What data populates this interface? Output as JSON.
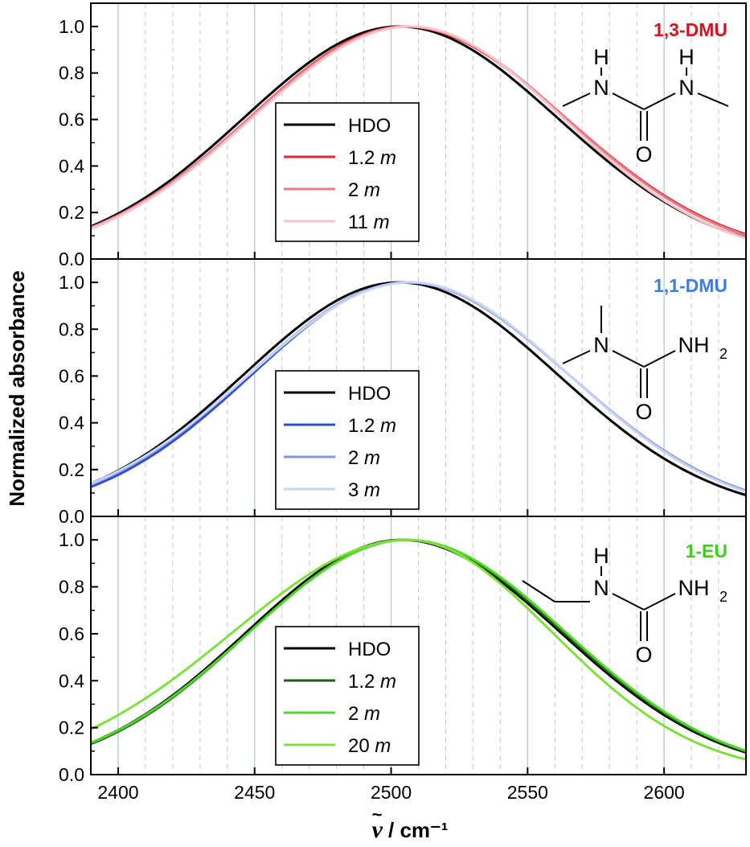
{
  "chart_data": {
    "type": "line",
    "ylabel": "Normalized absorbance",
    "xlabel_symbol": "ν",
    "xlabel_unit": "/ cm⁻¹",
    "xlim": [
      2390,
      2630
    ],
    "x_ticks": [
      "2400",
      "2450",
      "2500",
      "2550",
      "2600"
    ],
    "y_ticks": [
      "0.0",
      "0.2",
      "0.4",
      "0.6",
      "0.8",
      "1.0"
    ],
    "grid": "vertical lines every 10 cm-1 (solid at multiples of 50, dashed otherwise)",
    "panels": [
      {
        "label": "1,3-DMU",
        "label_color": "#d7141e",
        "ylim": [
          0,
          1.1
        ],
        "structure": {
          "atoms": [
            "H",
            "N",
            "H",
            "N",
            "O"
          ]
        },
        "legend_placement": "center-left",
        "series": [
          {
            "name": "HDO",
            "conc": "",
            "color": "#000000",
            "peak": 2503,
            "sigma_left": 57,
            "sigma_right": 58,
            "x": [
              2390,
              2410,
              2430,
              2450,
              2470,
              2490,
              2503,
              2520,
              2540,
              2560,
              2580,
              2600,
              2620,
              2630
            ],
            "y": [
              0.24,
              0.37,
              0.51,
              0.66,
              0.82,
              0.95,
              1.0,
              0.96,
              0.84,
              0.67,
              0.47,
              0.26,
              0.08,
              0.01
            ]
          },
          {
            "name": "1.2",
            "conc": "m",
            "color": "#e02830",
            "peak": 2505,
            "sigma_left": 57,
            "sigma_right": 59,
            "x": [
              2390,
              2410,
              2430,
              2450,
              2470,
              2490,
              2505,
              2520,
              2540,
              2560,
              2580,
              2600,
              2620,
              2630
            ],
            "y": [
              0.25,
              0.38,
              0.52,
              0.66,
              0.82,
              0.95,
              1.0,
              0.97,
              0.86,
              0.69,
              0.49,
              0.27,
              0.09,
              0.01
            ]
          },
          {
            "name": "2",
            "conc": "m",
            "color": "#ea7a86",
            "peak": 2506,
            "sigma_left": 58,
            "sigma_right": 58,
            "x": [
              2390,
              2410,
              2430,
              2450,
              2470,
              2490,
              2506,
              2520,
              2540,
              2560,
              2580,
              2600,
              2620,
              2630
            ],
            "y": [
              0.25,
              0.38,
              0.52,
              0.66,
              0.82,
              0.95,
              1.0,
              0.97,
              0.86,
              0.68,
              0.48,
              0.26,
              0.08,
              0.01
            ]
          },
          {
            "name": "11",
            "conc": "m",
            "color": "#f7c3cb",
            "peak": 2507,
            "sigma_left": 58,
            "sigma_right": 56,
            "x": [
              2390,
              2410,
              2430,
              2450,
              2470,
              2490,
              2507,
              2520,
              2540,
              2560,
              2580,
              2600,
              2620,
              2630
            ],
            "y": [
              0.26,
              0.39,
              0.53,
              0.67,
              0.82,
              0.95,
              1.0,
              0.97,
              0.85,
              0.66,
              0.45,
              0.24,
              0.07,
              0.01
            ]
          }
        ]
      },
      {
        "label": "1,1-DMU",
        "label_color": "#3d7ee0",
        "ylim": [
          0,
          1.1
        ],
        "structure": {
          "atoms": [
            "N",
            "NH",
            "2",
            "O"
          ]
        },
        "legend_placement": "bottom-center",
        "series": [
          {
            "name": "HDO",
            "conc": "",
            "color": "#000000",
            "peak": 2503,
            "sigma_left": 57,
            "sigma_right": 58,
            "x": [
              2390,
              2410,
              2430,
              2450,
              2470,
              2490,
              2503,
              2520,
              2540,
              2560,
              2580,
              2600,
              2620,
              2630
            ],
            "y": [
              0.25,
              0.37,
              0.51,
              0.66,
              0.82,
              0.95,
              1.0,
              0.96,
              0.84,
              0.67,
              0.47,
              0.26,
              0.08,
              0.01
            ]
          },
          {
            "name": "1.2",
            "conc": "m",
            "color": "#2e4fd1",
            "peak": 2506,
            "sigma_left": 57,
            "sigma_right": 59,
            "x": [
              2390,
              2410,
              2430,
              2450,
              2470,
              2490,
              2506,
              2520,
              2540,
              2560,
              2580,
              2600,
              2620,
              2630
            ],
            "y": [
              0.26,
              0.38,
              0.52,
              0.66,
              0.82,
              0.95,
              1.0,
              0.97,
              0.86,
              0.69,
              0.49,
              0.27,
              0.09,
              0.01
            ]
          },
          {
            "name": "2",
            "conc": "m",
            "color": "#8196e0",
            "peak": 2506,
            "sigma_left": 58,
            "sigma_right": 59,
            "x": [
              2390,
              2410,
              2430,
              2450,
              2470,
              2490,
              2506,
              2520,
              2540,
              2560,
              2580,
              2600,
              2620,
              2630
            ],
            "y": [
              0.26,
              0.39,
              0.52,
              0.66,
              0.82,
              0.95,
              1.0,
              0.97,
              0.86,
              0.69,
              0.49,
              0.27,
              0.09,
              0.01
            ]
          },
          {
            "name": "3",
            "conc": "m",
            "color": "#c9d3f3",
            "peak": 2507,
            "sigma_left": 59,
            "sigma_right": 58,
            "x": [
              2390,
              2410,
              2430,
              2450,
              2470,
              2490,
              2507,
              2520,
              2540,
              2560,
              2580,
              2600,
              2620,
              2630
            ],
            "y": [
              0.27,
              0.4,
              0.53,
              0.67,
              0.82,
              0.95,
              1.0,
              0.97,
              0.85,
              0.68,
              0.48,
              0.26,
              0.08,
              0.01
            ]
          }
        ]
      },
      {
        "label": "1-EU",
        "label_color": "#3fce1e",
        "ylim": [
          0,
          1.1
        ],
        "structure": {
          "atoms": [
            "H",
            "N",
            "NH",
            "2",
            "O"
          ]
        },
        "legend_placement": "bottom-center",
        "series": [
          {
            "name": "HDO",
            "conc": "",
            "color": "#000000",
            "peak": 2504,
            "sigma_left": 57,
            "sigma_right": 58,
            "x": [
              2390,
              2410,
              2430,
              2450,
              2470,
              2490,
              2504,
              2520,
              2540,
              2560,
              2580,
              2600,
              2620,
              2630
            ],
            "y": [
              0.25,
              0.37,
              0.51,
              0.66,
              0.82,
              0.95,
              1.0,
              0.96,
              0.84,
              0.67,
              0.47,
              0.26,
              0.08,
              0.01
            ]
          },
          {
            "name": "1.2",
            "conc": "m",
            "color": "#1f5e12",
            "peak": 2505,
            "sigma_left": 57,
            "sigma_right": 58,
            "x": [
              2390,
              2410,
              2430,
              2450,
              2470,
              2490,
              2505,
              2520,
              2540,
              2560,
              2580,
              2600,
              2620,
              2630
            ],
            "y": [
              0.26,
              0.38,
              0.52,
              0.66,
              0.82,
              0.95,
              1.0,
              0.96,
              0.84,
              0.67,
              0.47,
              0.26,
              0.08,
              0.01
            ]
          },
          {
            "name": "2",
            "conc": "m",
            "color": "#4fd82a",
            "peak": 2506,
            "sigma_left": 58,
            "sigma_right": 58,
            "x": [
              2390,
              2410,
              2430,
              2450,
              2470,
              2490,
              2506,
              2520,
              2540,
              2560,
              2580,
              2600,
              2620,
              2630
            ],
            "y": [
              0.26,
              0.38,
              0.52,
              0.66,
              0.82,
              0.95,
              1.0,
              0.97,
              0.85,
              0.67,
              0.47,
              0.26,
              0.08,
              0.01
            ]
          },
          {
            "name": "20",
            "conc": "m",
            "color": "#7ee03c",
            "peak": 2506,
            "sigma_left": 64,
            "sigma_right": 53,
            "x": [
              2390,
              2410,
              2430,
              2450,
              2470,
              2490,
              2506,
              2520,
              2540,
              2560,
              2580,
              2600,
              2620,
              2630
            ],
            "y": [
              0.29,
              0.44,
              0.58,
              0.72,
              0.85,
              0.96,
              1.0,
              0.96,
              0.83,
              0.63,
              0.41,
              0.2,
              0.06,
              0.01
            ]
          }
        ]
      }
    ]
  }
}
